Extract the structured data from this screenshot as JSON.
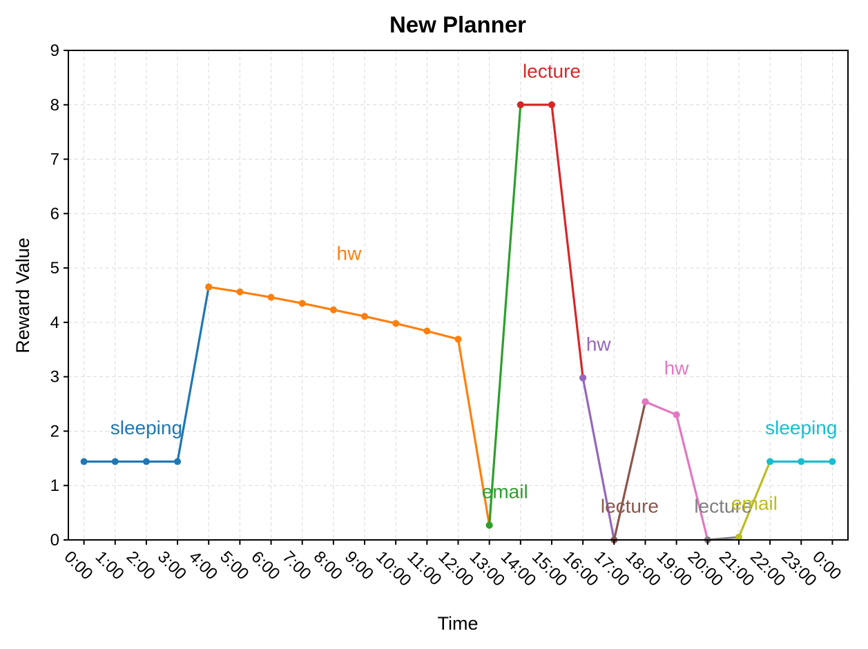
{
  "chart_data": {
    "type": "line",
    "title": "New Planner",
    "xlabel": "Time",
    "ylabel": "Reward Value",
    "xlim": [
      -0.5,
      24.5
    ],
    "ylim": [
      0,
      9
    ],
    "yticks": [
      0,
      1,
      2,
      3,
      4,
      5,
      6,
      7,
      8,
      9
    ],
    "xticks": [
      "0:00",
      "1:00",
      "2:00",
      "3:00",
      "4:00",
      "5:00",
      "6:00",
      "7:00",
      "8:00",
      "9:00",
      "10:00",
      "11:00",
      "12:00",
      "13:00",
      "14:00",
      "15:00",
      "16:00",
      "17:00",
      "18:00",
      "19:00",
      "20:00",
      "21:00",
      "22:00",
      "23:00",
      "0:00"
    ],
    "grid": true,
    "legend": "none",
    "series": [
      {
        "color": "#1f77b4",
        "x": [
          0,
          1,
          2,
          3,
          4
        ],
        "y": [
          1.44,
          1.44,
          1.44,
          1.44,
          4.65
        ]
      },
      {
        "color": "#ff7f0e",
        "x": [
          4,
          5,
          6,
          7,
          8,
          9,
          10,
          11,
          12,
          13
        ],
        "y": [
          4.65,
          4.56,
          4.46,
          4.35,
          4.23,
          4.11,
          3.98,
          3.84,
          3.69,
          0.27
        ]
      },
      {
        "color": "#2ca02c",
        "x": [
          13,
          14
        ],
        "y": [
          0.27,
          8.0
        ]
      },
      {
        "color": "#d62728",
        "x": [
          14,
          15,
          16
        ],
        "y": [
          8.0,
          8.0,
          2.98
        ]
      },
      {
        "color": "#9467bd",
        "x": [
          16,
          17
        ],
        "y": [
          2.98,
          0.0
        ]
      },
      {
        "color": "#8c564b",
        "x": [
          17,
          18
        ],
        "y": [
          0.0,
          2.54
        ]
      },
      {
        "color": "#e377c2",
        "x": [
          18,
          19,
          20
        ],
        "y": [
          2.54,
          2.3,
          0.0
        ]
      },
      {
        "color": "#7f7f7f",
        "x": [
          20,
          21
        ],
        "y": [
          0.0,
          0.05
        ]
      },
      {
        "color": "#bcbd22",
        "x": [
          21,
          22
        ],
        "y": [
          0.05,
          1.44
        ]
      },
      {
        "color": "#17becf",
        "x": [
          22,
          23,
          24
        ],
        "y": [
          1.44,
          1.44,
          1.44
        ]
      }
    ],
    "annotations": [
      {
        "text": "sleeping",
        "x": 2.0,
        "y": 1.94,
        "color": "#1f77b4"
      },
      {
        "text": "hw",
        "x": 8.5,
        "y": 5.15,
        "color": "#ff7f0e"
      },
      {
        "text": "email",
        "x": 13.5,
        "y": 0.77,
        "color": "#2ca02c"
      },
      {
        "text": "lecture",
        "x": 15.0,
        "y": 8.5,
        "color": "#d62728"
      },
      {
        "text": "hw",
        "x": 16.5,
        "y": 3.48,
        "color": "#9467bd"
      },
      {
        "text": "lecture",
        "x": 17.5,
        "y": 0.5,
        "color": "#8c564b"
      },
      {
        "text": "hw",
        "x": 19.0,
        "y": 3.04,
        "color": "#e377c2"
      },
      {
        "text": "lecture",
        "x": 20.5,
        "y": 0.5,
        "color": "#7f7f7f"
      },
      {
        "text": "email",
        "x": 21.5,
        "y": 0.55,
        "color": "#bcbd22"
      },
      {
        "text": "sleeping",
        "x": 23.0,
        "y": 1.94,
        "color": "#17becf"
      }
    ]
  }
}
